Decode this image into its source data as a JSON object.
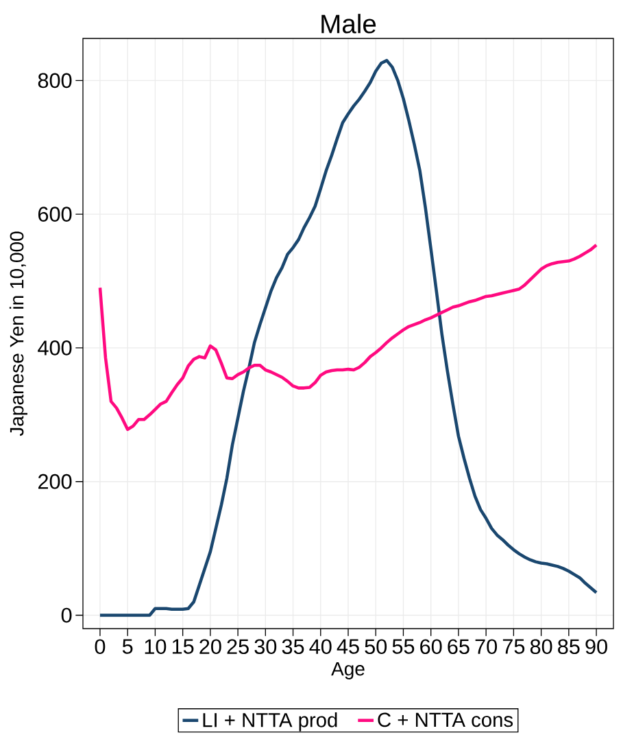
{
  "chart_data": {
    "type": "line",
    "title": "Male",
    "xlabel": "Age",
    "ylabel": "Japanese Yen in 10,000",
    "x": [
      0,
      1,
      2,
      3,
      4,
      5,
      6,
      7,
      8,
      9,
      10,
      11,
      12,
      13,
      14,
      15,
      16,
      17,
      18,
      19,
      20,
      21,
      22,
      23,
      24,
      25,
      26,
      27,
      28,
      29,
      30,
      31,
      32,
      33,
      34,
      35,
      36,
      37,
      38,
      39,
      40,
      41,
      42,
      43,
      44,
      45,
      46,
      47,
      48,
      49,
      50,
      51,
      52,
      53,
      54,
      55,
      56,
      57,
      58,
      59,
      60,
      61,
      62,
      63,
      64,
      65,
      66,
      67,
      68,
      69,
      70,
      71,
      72,
      73,
      74,
      75,
      76,
      77,
      78,
      79,
      80,
      81,
      82,
      83,
      84,
      85,
      86,
      87,
      88,
      89,
      90
    ],
    "series": [
      {
        "name": "LI + NTTA prod",
        "color": "#1a476f",
        "values": [
          0,
          0,
          0,
          0,
          0,
          0,
          0,
          0,
          0,
          0,
          10,
          10,
          10,
          9,
          9,
          9,
          10,
          20,
          45,
          70,
          95,
          130,
          165,
          205,
          255,
          295,
          335,
          370,
          408,
          435,
          460,
          485,
          505,
          520,
          540,
          550,
          562,
          580,
          595,
          612,
          638,
          665,
          688,
          713,
          737,
          750,
          762,
          772,
          784,
          797,
          814,
          826,
          830,
          820,
          800,
          773,
          740,
          704,
          665,
          610,
          548,
          485,
          420,
          365,
          315,
          268,
          235,
          205,
          178,
          158,
          145,
          130,
          120,
          113,
          105,
          98,
          92,
          87,
          83,
          80,
          78,
          77,
          75,
          73,
          70,
          66,
          61,
          56,
          48,
          41,
          34
        ]
      },
      {
        "name": "C + NTTA cons",
        "color": "#ff0a80",
        "values": [
          490,
          385,
          320,
          310,
          295,
          278,
          283,
          293,
          293,
          300,
          308,
          316,
          320,
          333,
          345,
          355,
          373,
          383,
          387,
          385,
          403,
          397,
          377,
          355,
          354,
          360,
          364,
          370,
          374,
          374,
          367,
          364,
          360,
          356,
          350,
          343,
          340,
          340,
          341,
          348,
          359,
          364,
          366,
          367,
          367,
          368,
          367,
          371,
          378,
          387,
          393,
          400,
          408,
          415,
          421,
          427,
          432,
          435,
          438,
          442,
          445,
          449,
          453,
          457,
          461,
          463,
          466,
          469,
          471,
          474,
          477,
          478,
          480,
          482,
          484,
          486,
          488,
          494,
          502,
          510,
          518,
          523,
          526,
          528,
          529,
          530,
          533,
          537,
          542,
          547,
          554
        ]
      }
    ],
    "xlim": [
      -3.1,
      93.1
    ],
    "ylim": [
      -20,
      863
    ],
    "xticks": [
      0,
      5,
      10,
      15,
      20,
      25,
      30,
      35,
      40,
      45,
      50,
      55,
      60,
      65,
      70,
      75,
      80,
      85,
      90
    ],
    "yticks": [
      0,
      200,
      400,
      600,
      800
    ],
    "grid": true,
    "legend": "bottom",
    "marker": "none",
    "line_style": "solid"
  }
}
